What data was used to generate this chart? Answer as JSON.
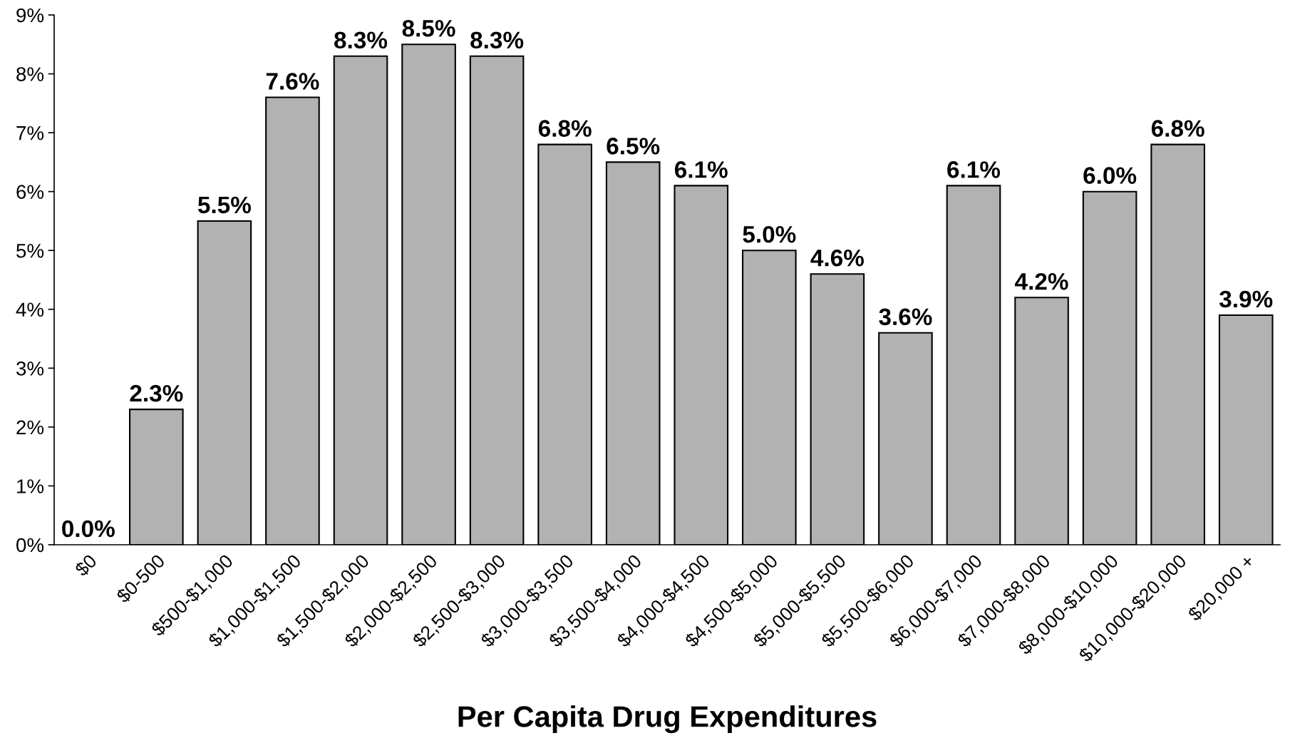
{
  "chart_data": {
    "type": "bar",
    "xlabel": "Per Capita Drug Expenditures",
    "categories": [
      "$0",
      "$0-500",
      "$500-$1,000",
      "$1,000-$1,500",
      "$1,500-$2,000",
      "$2,000-$2,500",
      "$2,500-$3,000",
      "$3,000-$3,500",
      "$3,500-$4,000",
      "$4,000-$4,500",
      "$4,500-$5,000",
      "$5,000-$5,500",
      "$5,500-$6,000",
      "$6,000-$7,000",
      "$7,000-$8,000",
      "$8,000-$10,000",
      "$10,000-$20,000",
      "$20,000 +"
    ],
    "values": [
      0.0,
      2.3,
      5.5,
      7.6,
      8.3,
      8.5,
      8.3,
      6.8,
      6.5,
      6.1,
      5.0,
      4.6,
      3.6,
      6.1,
      4.2,
      6.0,
      6.8,
      3.9
    ],
    "value_labels": [
      "0.0%",
      "2.3%",
      "5.5%",
      "7.6%",
      "8.3%",
      "8.5%",
      "8.3%",
      "6.8%",
      "6.5%",
      "6.1%",
      "5.0%",
      "4.6%",
      "3.6%",
      "6.1%",
      "4.2%",
      "6.0%",
      "6.8%",
      "3.9%"
    ],
    "color": "#b2b2b2",
    "ylim": [
      0,
      9
    ],
    "yticks": [
      {
        "value": 0,
        "label": "0%"
      },
      {
        "value": 1,
        "label": "1%"
      },
      {
        "value": 2,
        "label": "2%"
      },
      {
        "value": 3,
        "label": "3%"
      },
      {
        "value": 4,
        "label": "4%"
      },
      {
        "value": 5,
        "label": "5%"
      },
      {
        "value": 6,
        "label": "6%"
      },
      {
        "value": 7,
        "label": "7%"
      },
      {
        "value": 8,
        "label": "8%"
      },
      {
        "value": 9,
        "label": "9%"
      }
    ],
    "grid": false,
    "legend": false
  }
}
